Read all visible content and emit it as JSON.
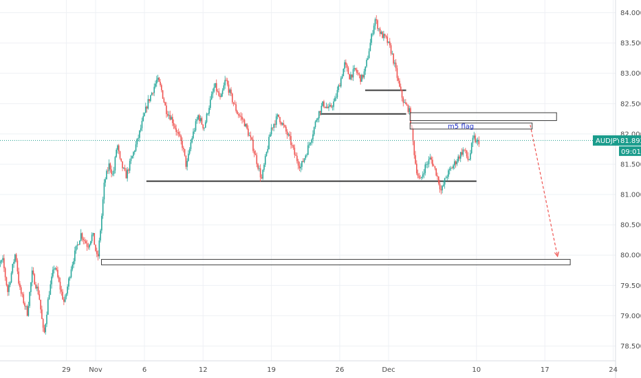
{
  "chart_data": {
    "type": "candlestick",
    "symbol": "AUDJPY",
    "last_price": "81.892",
    "countdown": "09:01",
    "yaxis": {
      "range": [
        78.35,
        84.1
      ],
      "ticks": [
        "78.500",
        "79.000",
        "79.500",
        "80.000",
        "80.500",
        "81.000",
        "81.500",
        "82.000",
        "82.500",
        "83.000",
        "83.500",
        "84.000"
      ]
    },
    "xaxis": {
      "ticks": [
        {
          "label": "29",
          "day": -3
        },
        {
          "label": "Nov",
          "day": 0
        },
        {
          "label": "6",
          "day": 5
        },
        {
          "label": "12",
          "day": 11
        },
        {
          "label": "19",
          "day": 18
        },
        {
          "label": "26",
          "day": 25
        },
        {
          "label": "Dec",
          "day": 30
        },
        {
          "label": "10",
          "day": 39
        },
        {
          "label": "17",
          "day": 46
        },
        {
          "label": "24",
          "day": 53
        }
      ]
    },
    "price_path": [
      [
        -10.5,
        79.75
      ],
      [
        -9.5,
        79.9
      ],
      [
        -9,
        79.4
      ],
      [
        -8.2,
        80.05
      ],
      [
        -7.8,
        79.45
      ],
      [
        -7,
        79.05
      ],
      [
        -6.5,
        79.7
      ],
      [
        -5.8,
        79.35
      ],
      [
        -5.3,
        78.65
      ],
      [
        -4.8,
        79.35
      ],
      [
        -4.2,
        79.85
      ],
      [
        -3.7,
        79.5
      ],
      [
        -3.2,
        79.2
      ],
      [
        -2.5,
        79.8
      ],
      [
        -2,
        80.1
      ],
      [
        -1.5,
        80.35
      ],
      [
        -0.8,
        80.15
      ],
      [
        -0.3,
        80.35
      ],
      [
        0.2,
        79.9
      ],
      [
        0.6,
        80.6
      ],
      [
        0.9,
        81.2
      ],
      [
        1.4,
        81.5
      ],
      [
        1.8,
        81.3
      ],
      [
        2.2,
        81.85
      ],
      [
        2.5,
        81.55
      ],
      [
        3.1,
        81.3
      ],
      [
        3.7,
        81.6
      ],
      [
        4.3,
        81.9
      ],
      [
        4.8,
        82.2
      ],
      [
        5.3,
        82.5
      ],
      [
        5.8,
        82.7
      ],
      [
        6.3,
        82.9
      ],
      [
        6.7,
        82.75
      ],
      [
        7.2,
        82.4
      ],
      [
        7.8,
        82.25
      ],
      [
        8.4,
        82.0
      ],
      [
        8.9,
        81.8
      ],
      [
        9.3,
        81.45
      ],
      [
        9.8,
        81.9
      ],
      [
        10.5,
        82.3
      ],
      [
        11.1,
        82.1
      ],
      [
        11.6,
        82.45
      ],
      [
        12.2,
        82.8
      ],
      [
        12.8,
        82.55
      ],
      [
        13.3,
        82.9
      ],
      [
        13.9,
        82.6
      ],
      [
        14.5,
        82.35
      ],
      [
        15.2,
        82.2
      ],
      [
        16.0,
        81.85
      ],
      [
        16.5,
        81.55
      ],
      [
        17.0,
        81.25
      ],
      [
        17.4,
        81.6
      ],
      [
        18.0,
        82.1
      ],
      [
        18.7,
        82.3
      ],
      [
        19.3,
        82.1
      ],
      [
        19.9,
        81.9
      ],
      [
        20.4,
        81.65
      ],
      [
        21.0,
        81.45
      ],
      [
        21.6,
        81.7
      ],
      [
        22.2,
        82.0
      ],
      [
        22.7,
        82.3
      ],
      [
        23.3,
        82.5
      ],
      [
        23.9,
        82.4
      ],
      [
        24.5,
        82.55
      ],
      [
        25.1,
        82.9
      ],
      [
        25.5,
        83.15
      ],
      [
        26.0,
        82.95
      ],
      [
        26.6,
        83.05
      ],
      [
        27.2,
        82.9
      ],
      [
        27.6,
        83.05
      ],
      [
        28.6,
        83.9
      ],
      [
        29.2,
        83.65
      ],
      [
        29.8,
        83.55
      ],
      [
        30.3,
        83.35
      ],
      [
        30.8,
        83.0
      ],
      [
        31.2,
        82.7
      ],
      [
        31.6,
        82.5
      ],
      [
        32.1,
        82.4
      ],
      [
        32.4,
        82.0
      ],
      [
        32.8,
        81.45
      ],
      [
        33.2,
        81.2
      ],
      [
        33.7,
        81.45
      ],
      [
        34.3,
        81.6
      ],
      [
        34.9,
        81.35
      ],
      [
        35.4,
        81.05
      ],
      [
        35.9,
        81.3
      ],
      [
        36.5,
        81.45
      ],
      [
        37.1,
        81.6
      ],
      [
        37.7,
        81.75
      ],
      [
        38.2,
        81.55
      ],
      [
        38.7,
        81.95
      ],
      [
        39.0,
        81.85
      ],
      [
        39.3,
        81.89
      ]
    ],
    "horizontal_levels": [
      {
        "day_start": 5.2,
        "day_end": 39.0,
        "price": 81.22
      },
      {
        "day_start": 23.0,
        "day_end": 31.8,
        "price": 82.33
      },
      {
        "day_start": 27.6,
        "day_end": 31.8,
        "price": 82.72
      }
    ],
    "zones": [
      {
        "day_start": 32.2,
        "day_end": 47.2,
        "price_low": 82.22,
        "price_high": 82.35
      },
      {
        "day_start": 32.2,
        "day_end": 44.7,
        "price_low": 82.08,
        "price_high": 82.18
      },
      {
        "day_start": 0.6,
        "day_end": 48.6,
        "price_low": 79.84,
        "price_high": 79.93
      }
    ],
    "annotations": [
      {
        "text": "m5 flag",
        "day": 37.4,
        "price": 82.13
      }
    ],
    "projection": {
      "from_day": 44.5,
      "from_price": 82.15,
      "to_day": 47.3,
      "to_price": 79.98
    }
  }
}
